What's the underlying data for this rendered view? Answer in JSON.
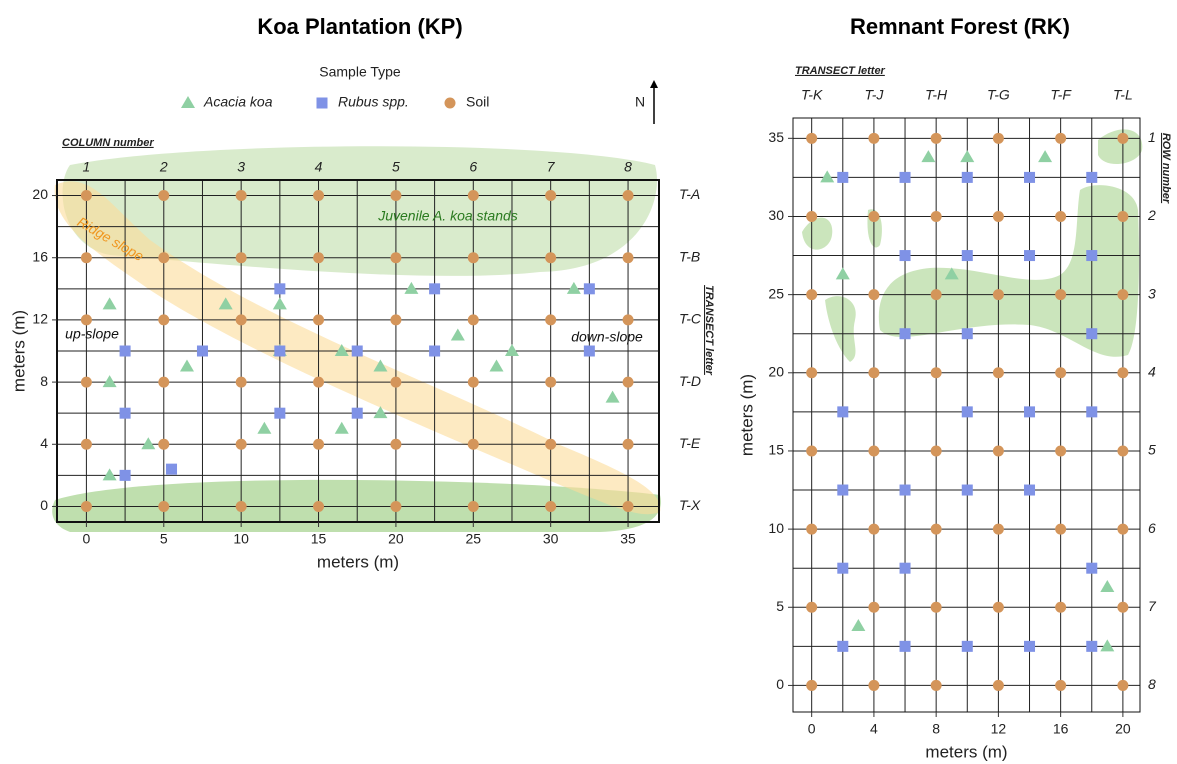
{
  "chart_data": [
    {
      "type": "scatter",
      "title": "Koa Plantation (KP)",
      "legend_title": "Sample Type",
      "legend": true,
      "north": "N",
      "xlabel": "meters (m)",
      "ylabel": "meters (m)",
      "xlim": [
        -1.9,
        37
      ],
      "ylim": [
        -1,
        21
      ],
      "xticks": [
        0,
        5,
        10,
        15,
        20,
        25,
        30,
        35
      ],
      "yticks": [
        0,
        4,
        8,
        12,
        16,
        20
      ],
      "xgrid": [
        0,
        2.5,
        5,
        7.5,
        10,
        12.5,
        15,
        17.5,
        20,
        22.5,
        25,
        27.5,
        30,
        32.5,
        35
      ],
      "ygrid": [
        0,
        2,
        4,
        6,
        8,
        10,
        12,
        14,
        16,
        18,
        20
      ],
      "column_title": "COLUMN number",
      "column_labels": [
        "1",
        "2",
        "3",
        "4",
        "5",
        "6",
        "7",
        "8"
      ],
      "row_title": "TRANSECT letter",
      "row_labels": [
        "T-A",
        "T-B",
        "T-C",
        "T-D",
        "T-E",
        "T-X"
      ],
      "annotations": [
        "Juvenile A. koa stands",
        "Ridge slope",
        "up-slope",
        "down-slope"
      ],
      "series": [
        {
          "name": "Acacia koa",
          "color": "#8fd0a3",
          "marker": "triangle",
          "x": [
            1.5,
            9,
            12.5,
            21,
            31.5,
            1.5,
            6.5,
            12.5,
            16.5,
            19,
            24,
            26.5,
            27.5,
            34,
            11.5,
            16.5,
            19,
            4,
            1.5
          ],
          "y": [
            13,
            13,
            13,
            14,
            14,
            8,
            9,
            10,
            10,
            9,
            11,
            9,
            10,
            7,
            5,
            5,
            6,
            4,
            2
          ]
        },
        {
          "name": "Rubus spp.",
          "color": "#7f92e6",
          "marker": "square",
          "x": [
            12.5,
            22.5,
            32.5,
            2.5,
            7.5,
            12.5,
            17.5,
            22.5,
            32.5,
            2.5,
            12.5,
            17.5,
            2.5,
            5.5
          ],
          "y": [
            14,
            14,
            14,
            10,
            10,
            10,
            10,
            10,
            10,
            6,
            6,
            6,
            2,
            2.4
          ]
        },
        {
          "name": "Soil",
          "color": "#d4955a",
          "marker": "circle",
          "x": [
            0,
            5,
            10,
            15,
            20,
            25,
            30,
            35,
            0,
            5,
            10,
            15,
            20,
            25,
            30,
            35,
            0,
            5,
            10,
            15,
            20,
            25,
            30,
            35,
            0,
            5,
            10,
            15,
            20,
            25,
            30,
            35,
            0,
            5,
            10,
            15,
            20,
            25,
            30,
            35,
            0,
            5,
            10,
            15,
            20,
            25,
            30,
            35
          ],
          "y": [
            20,
            20,
            20,
            20,
            20,
            20,
            20,
            20,
            16,
            16,
            16,
            16,
            16,
            16,
            16,
            16,
            12,
            12,
            12,
            12,
            12,
            12,
            12,
            12,
            8,
            8,
            8,
            8,
            8,
            8,
            8,
            8,
            4,
            4,
            4,
            4,
            4,
            4,
            4,
            4,
            0,
            0,
            0,
            0,
            0,
            0,
            0,
            0
          ]
        }
      ]
    },
    {
      "type": "scatter",
      "title": "Remnant Forest (RK)",
      "legend": false,
      "xlabel": "meters (m)",
      "ylabel": "meters (m)",
      "xlim": [
        -1.2,
        21.1
      ],
      "ylim": [
        -1.7,
        36.3
      ],
      "xticks": [
        0,
        4,
        8,
        12,
        16,
        20
      ],
      "yticks": [
        0,
        5,
        10,
        15,
        20,
        25,
        30,
        35
      ],
      "xgrid": [
        0,
        2,
        4,
        6,
        8,
        10,
        12,
        14,
        16,
        18,
        20
      ],
      "ygrid": [
        0,
        2.5,
        5,
        7.5,
        10,
        12.5,
        15,
        17.5,
        20,
        22.5,
        25,
        27.5,
        30,
        32.5,
        35
      ],
      "column_title": "TRANSECT letter",
      "column_labels": [
        "T-K",
        "T-J",
        "T-H",
        "T-G",
        "T-F",
        "T-L"
      ],
      "row_title": "ROW number",
      "row_labels": [
        "1",
        "2",
        "3",
        "4",
        "5",
        "6",
        "7",
        "8"
      ],
      "series": [
        {
          "name": "Acacia koa",
          "color": "#8fd0a3",
          "marker": "triangle",
          "x": [
            1,
            7.5,
            10,
            15,
            2,
            9,
            19,
            3,
            19
          ],
          "y": [
            32.5,
            33.8,
            33.8,
            33.8,
            26.3,
            26.3,
            6.3,
            3.8,
            2.5
          ]
        },
        {
          "name": "Rubus spp.",
          "color": "#7f92e6",
          "marker": "square",
          "x": [
            2,
            6,
            10,
            14,
            18,
            6,
            10,
            14,
            18,
            6,
            10,
            18,
            2,
            10,
            14,
            18,
            2,
            6,
            10,
            14,
            2,
            6,
            18,
            2,
            6,
            10,
            14,
            18
          ],
          "y": [
            32.5,
            32.5,
            32.5,
            32.5,
            32.5,
            27.5,
            27.5,
            27.5,
            27.5,
            22.5,
            22.5,
            22.5,
            17.5,
            17.5,
            17.5,
            17.5,
            12.5,
            12.5,
            12.5,
            12.5,
            7.5,
            7.5,
            7.5,
            2.5,
            2.5,
            2.5,
            2.5,
            2.5
          ]
        },
        {
          "name": "Soil",
          "color": "#d4955a",
          "marker": "circle",
          "x": [
            0,
            4,
            8,
            12,
            16,
            20,
            0,
            4,
            8,
            12,
            16,
            20,
            0,
            4,
            8,
            12,
            16,
            20,
            0,
            4,
            8,
            12,
            16,
            20,
            0,
            4,
            8,
            12,
            16,
            20,
            0,
            4,
            8,
            12,
            16,
            20,
            0,
            4,
            8,
            12,
            16,
            20,
            0,
            4,
            8,
            12,
            16,
            20
          ],
          "y": [
            35,
            35,
            35,
            35,
            35,
            35,
            30,
            30,
            30,
            30,
            30,
            30,
            25,
            25,
            25,
            25,
            25,
            25,
            20,
            20,
            20,
            20,
            20,
            20,
            15,
            15,
            15,
            15,
            15,
            15,
            10,
            10,
            10,
            10,
            10,
            10,
            5,
            5,
            5,
            5,
            5,
            5,
            0,
            0,
            0,
            0,
            0,
            0
          ]
        }
      ]
    }
  ]
}
